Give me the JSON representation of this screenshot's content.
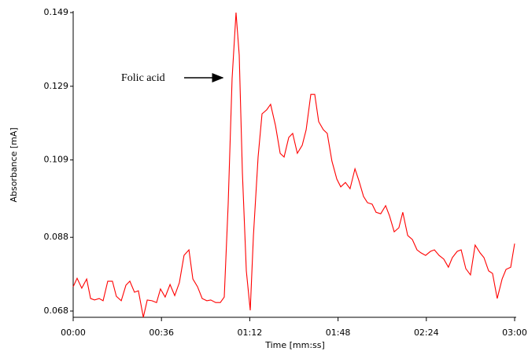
{
  "chart_data": {
    "type": "line",
    "x_label": "Time [mm:ss]",
    "y_label": "Absorbance [mA]",
    "annotation": "Folic acid",
    "color": "#ff0000",
    "x": [
      0,
      1.6,
      3.5,
      5.5,
      7.1,
      8.7,
      10.6,
      12.2,
      14.1,
      16.0,
      17.6,
      19.6,
      21.5,
      23.1,
      25.0,
      26.6,
      28.6,
      30.2,
      32.1,
      34.0,
      35.6,
      37.5,
      39.5,
      41.4,
      43.3,
      45.2,
      47.2,
      48.8,
      50.7,
      52.6,
      54.5,
      56.1,
      58.1,
      60.0,
      61.6,
      63.2,
      64.8,
      66.4,
      67.7,
      69.0,
      70.6,
      72.2,
      73.5,
      75.4,
      77.0,
      78.9,
      80.5,
      82.5,
      84.4,
      86.0,
      87.9,
      89.5,
      91.4,
      93.4,
      95.0,
      96.9,
      98.5,
      100.1,
      102.0,
      103.6,
      105.5,
      107.5,
      109.1,
      111.0,
      112.9,
      114.9,
      116.5,
      118.4,
      120.0,
      121.9,
      123.5,
      125.4,
      127.4,
      129.0,
      130.9,
      132.8,
      134.4,
      136.4,
      138.3,
      140.2,
      141.8,
      143.7,
      145.7,
      147.3,
      149.2,
      151.1,
      153.0,
      154.6,
      156.6,
      158.2,
      160.1,
      162.0,
      163.9,
      165.9,
      167.5,
      169.4,
      171.0,
      172.9,
      174.9,
      176.5,
      178.4,
      180.0
    ],
    "values": [
      0.0746,
      0.0769,
      0.0742,
      0.0767,
      0.0714,
      0.071,
      0.0714,
      0.0708,
      0.0761,
      0.0761,
      0.072,
      0.0708,
      0.075,
      0.0761,
      0.0731,
      0.0735,
      0.0663,
      0.071,
      0.0708,
      0.0703,
      0.074,
      0.0718,
      0.0752,
      0.0722,
      0.0757,
      0.0831,
      0.0846,
      0.0767,
      0.0746,
      0.0714,
      0.0708,
      0.071,
      0.0703,
      0.0703,
      0.0718,
      0.097,
      0.1311,
      0.149,
      0.1375,
      0.1055,
      0.0789,
      0.0682,
      0.0885,
      0.1098,
      0.1215,
      0.1226,
      0.1241,
      0.1183,
      0.1108,
      0.1098,
      0.1151,
      0.1162,
      0.1108,
      0.113,
      0.1172,
      0.1268,
      0.1268,
      0.1194,
      0.1172,
      0.1162,
      0.1087,
      0.1038,
      0.1017,
      0.1029,
      0.1012,
      0.1066,
      0.1034,
      0.0991,
      0.0974,
      0.097,
      0.0948,
      0.0944,
      0.0966,
      0.0938,
      0.0895,
      0.0906,
      0.0948,
      0.0885,
      0.0874,
      0.0846,
      0.0838,
      0.0831,
      0.0842,
      0.0846,
      0.0831,
      0.0821,
      0.0799,
      0.0825,
      0.0842,
      0.0846,
      0.0795,
      0.0778,
      0.0859,
      0.0838,
      0.0825,
      0.0789,
      0.0782,
      0.0714,
      0.0767,
      0.0793,
      0.0799,
      0.0863
    ],
    "xlim": [
      0,
      180
    ],
    "xticks": [
      {
        "value": 0,
        "label": "00:00"
      },
      {
        "value": 36,
        "label": "00:36"
      },
      {
        "value": 72,
        "label": "01:12"
      },
      {
        "value": 108,
        "label": "01:48"
      },
      {
        "value": 144,
        "label": "02:24"
      },
      {
        "value": 180,
        "label": "03:00"
      }
    ],
    "ylim": [
      0.0663,
      0.149
    ],
    "yticks": [
      0.068,
      0.088,
      0.109,
      0.129,
      0.149
    ]
  }
}
